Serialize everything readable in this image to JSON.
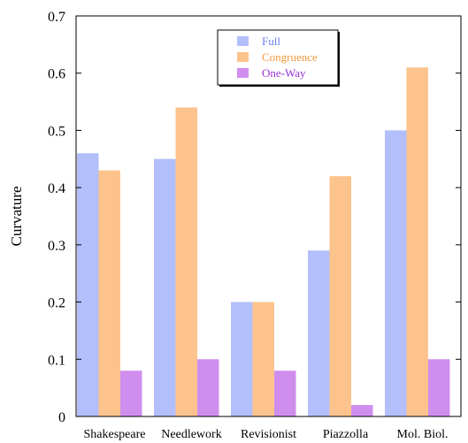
{
  "chart_data": {
    "type": "bar",
    "title": "",
    "xlabel": "",
    "ylabel": "Curvature",
    "ylim": [
      0,
      0.7
    ],
    "yticks": [
      0,
      0.1,
      0.2,
      0.3,
      0.4,
      0.5,
      0.6,
      0.7
    ],
    "ytick_labels": [
      "0",
      "0.1",
      "0.2",
      "0.3",
      "0.4",
      "0.5",
      "0.6",
      "0.7"
    ],
    "categories": [
      "Shakespeare",
      "Needlework",
      "Revisionist",
      "Piazzolla",
      "Mol. Biol."
    ],
    "series": [
      {
        "name": "Full",
        "color": "#b3bffa",
        "values": [
          0.46,
          0.45,
          0.2,
          0.29,
          0.5
        ]
      },
      {
        "name": "Congruence",
        "color": "#fdc38d",
        "values": [
          0.43,
          0.54,
          0.2,
          0.42,
          0.61
        ]
      },
      {
        "name": "One-Way",
        "color": "#cf8eee",
        "values": [
          0.08,
          0.1,
          0.08,
          0.02,
          0.1
        ]
      }
    ],
    "legend": {
      "position": "top-center",
      "text_colors": [
        "#6b7ff2",
        "#f59a3c",
        "#9a32d6"
      ]
    },
    "grid": false
  }
}
